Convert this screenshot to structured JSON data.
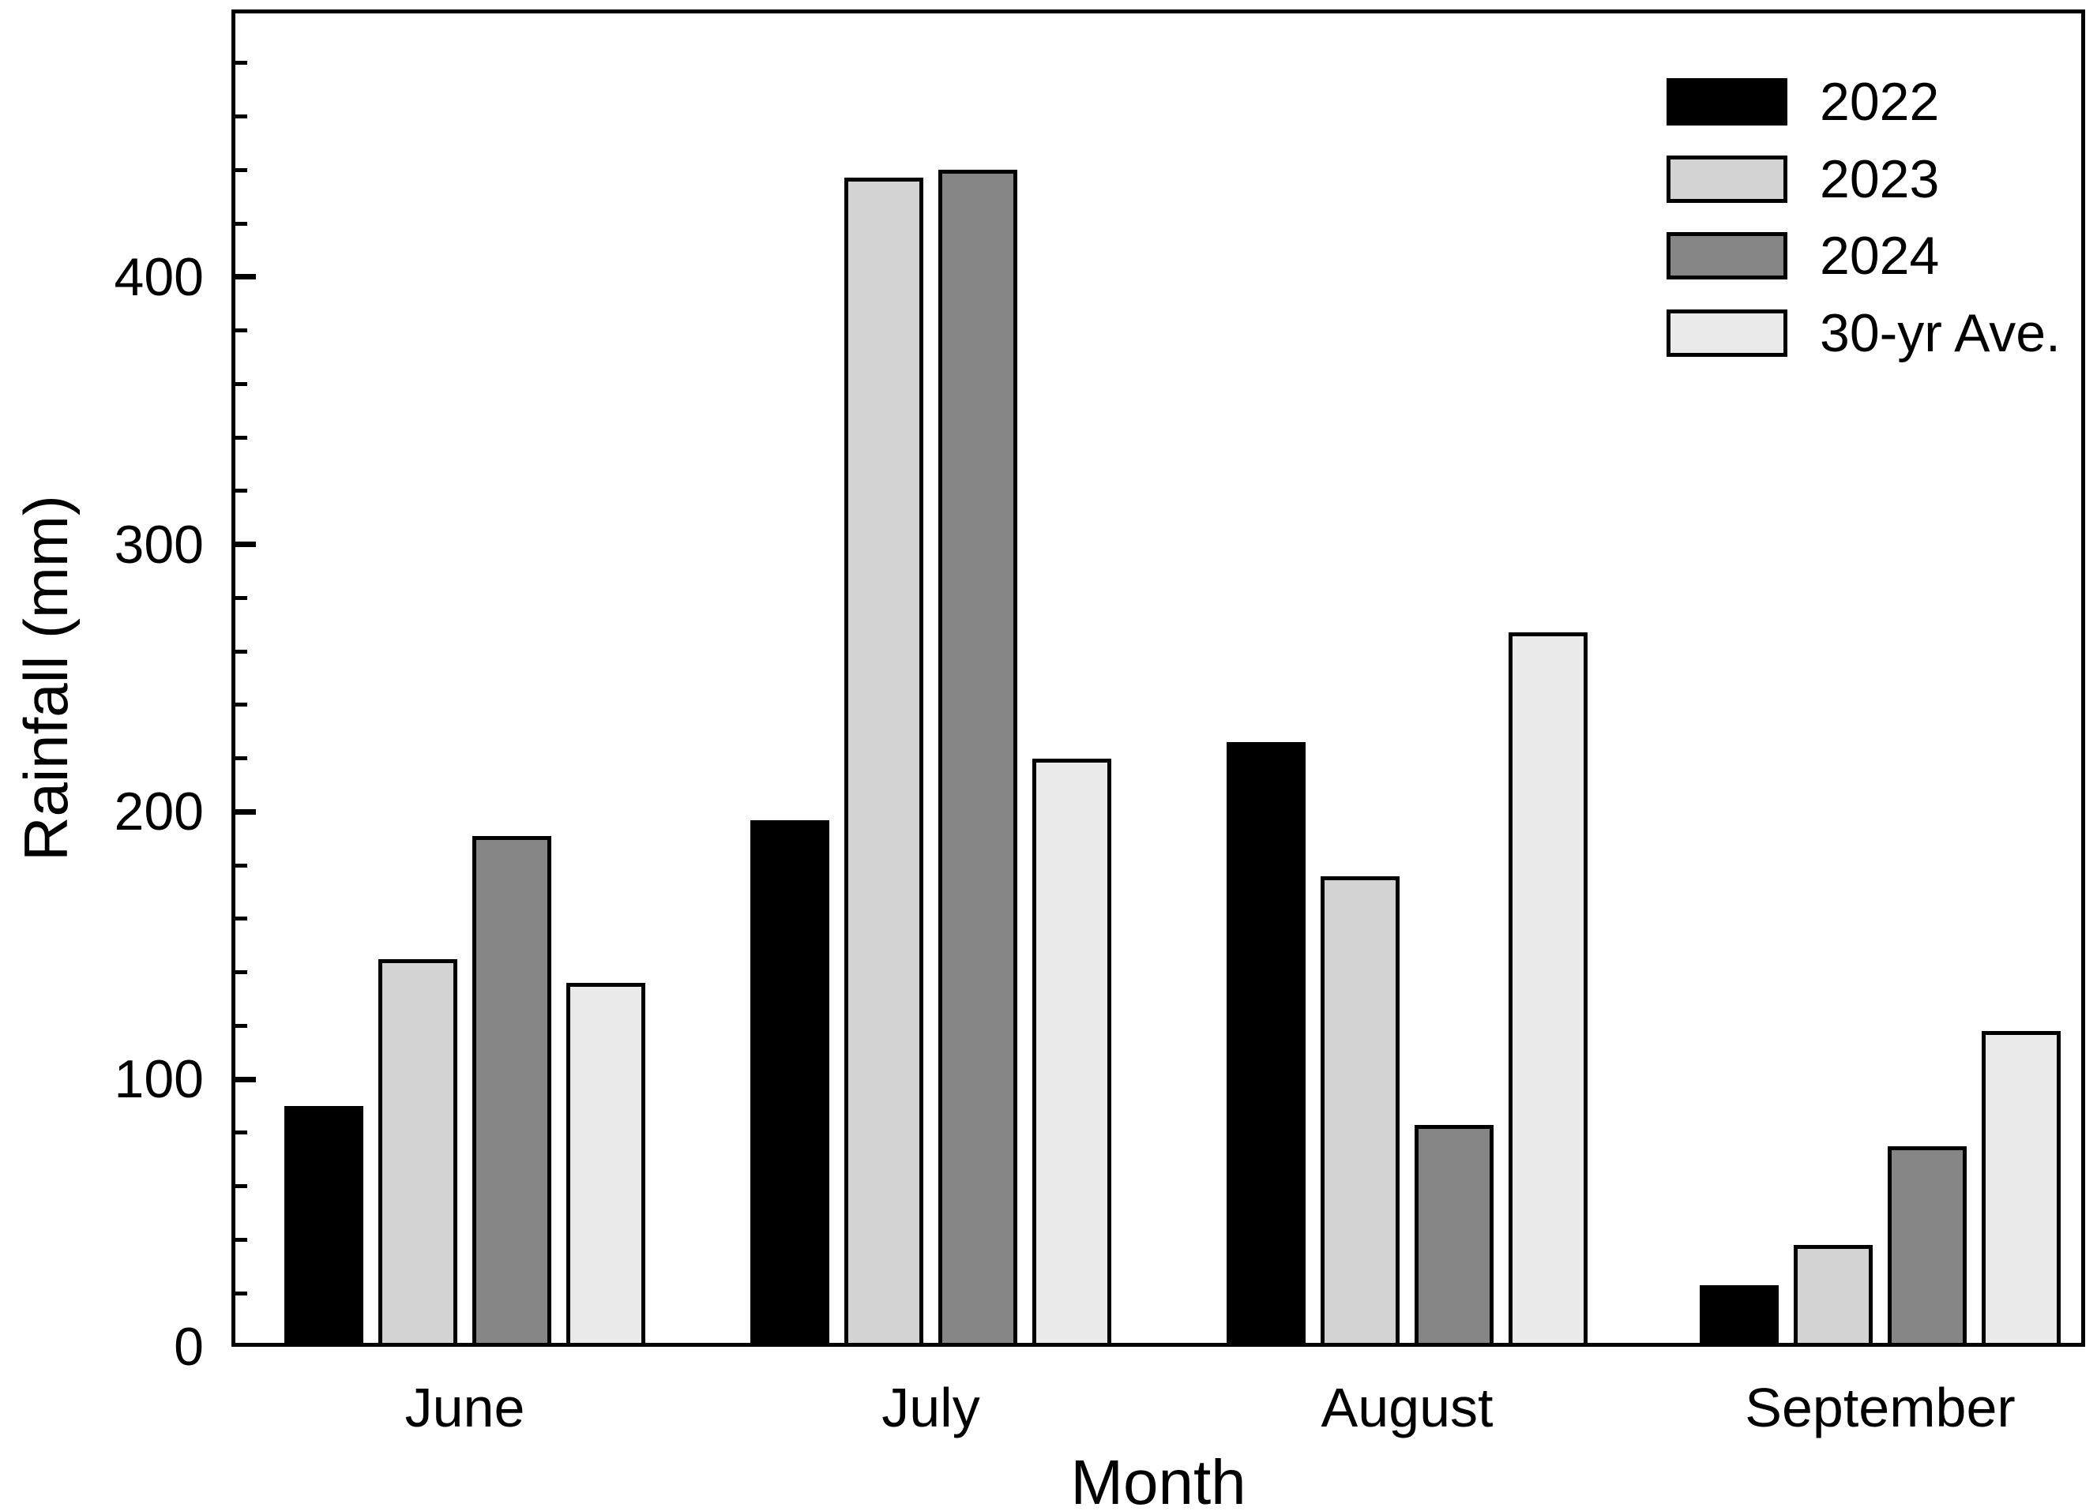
{
  "figure": {
    "background": "#ffffff",
    "frame_color": "#000000",
    "text_color": "#000000"
  },
  "chart_data": {
    "type": "bar",
    "title": "",
    "xlabel": "Month",
    "ylabel": "Rainfall (mm)",
    "categories": [
      "June",
      "July",
      "August",
      "September"
    ],
    "series": [
      {
        "name": "2022",
        "color": "#000000",
        "values": [
          90,
          197,
          226,
          23
        ]
      },
      {
        "name": "2023",
        "color": "#d3d3d3",
        "values": [
          145,
          437,
          176,
          38
        ]
      },
      {
        "name": "2024",
        "color": "#858585",
        "values": [
          191,
          440,
          83,
          75
        ]
      },
      {
        "name": "30-yr Ave.",
        "color": "#eaeaea",
        "values": [
          136,
          220,
          267,
          118
        ]
      }
    ],
    "ylim": [
      0,
      500
    ],
    "yticks": [
      0,
      100,
      200,
      300,
      400
    ],
    "minor_tick_step": 20,
    "grid": false,
    "legend_position": "top-right",
    "bar_outline_color": "#000000"
  }
}
